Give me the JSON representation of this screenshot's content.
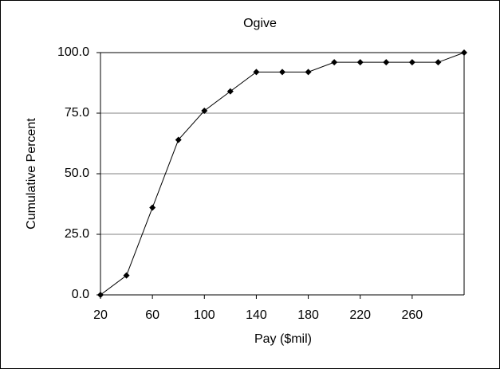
{
  "chart_data": {
    "type": "line",
    "title": "Ogive",
    "x_label": "Pay ($mil)",
    "y_label": "Cumulative Percent",
    "x": [
      20,
      40,
      60,
      80,
      100,
      120,
      140,
      160,
      180,
      200,
      220,
      240,
      260,
      280,
      300
    ],
    "series": [
      {
        "name": "Cumulative Percent",
        "color": "#000000",
        "values": [
          0,
          8,
          36,
          64,
          76,
          84,
          92,
          92,
          92,
          96,
          96,
          96,
          96,
          96,
          100
        ]
      }
    ],
    "xlim": [
      20,
      300
    ],
    "xticks": [
      20,
      60,
      100,
      140,
      180,
      220,
      260
    ],
    "ylim": [
      0,
      100
    ],
    "yticks": [
      {
        "value": 0,
        "label": "0.0"
      },
      {
        "value": 25,
        "label": "25.0"
      },
      {
        "value": 50,
        "label": "50.0"
      },
      {
        "value": 75,
        "label": "75.0"
      },
      {
        "value": 100,
        "label": "100.0"
      }
    ],
    "grid": true
  }
}
